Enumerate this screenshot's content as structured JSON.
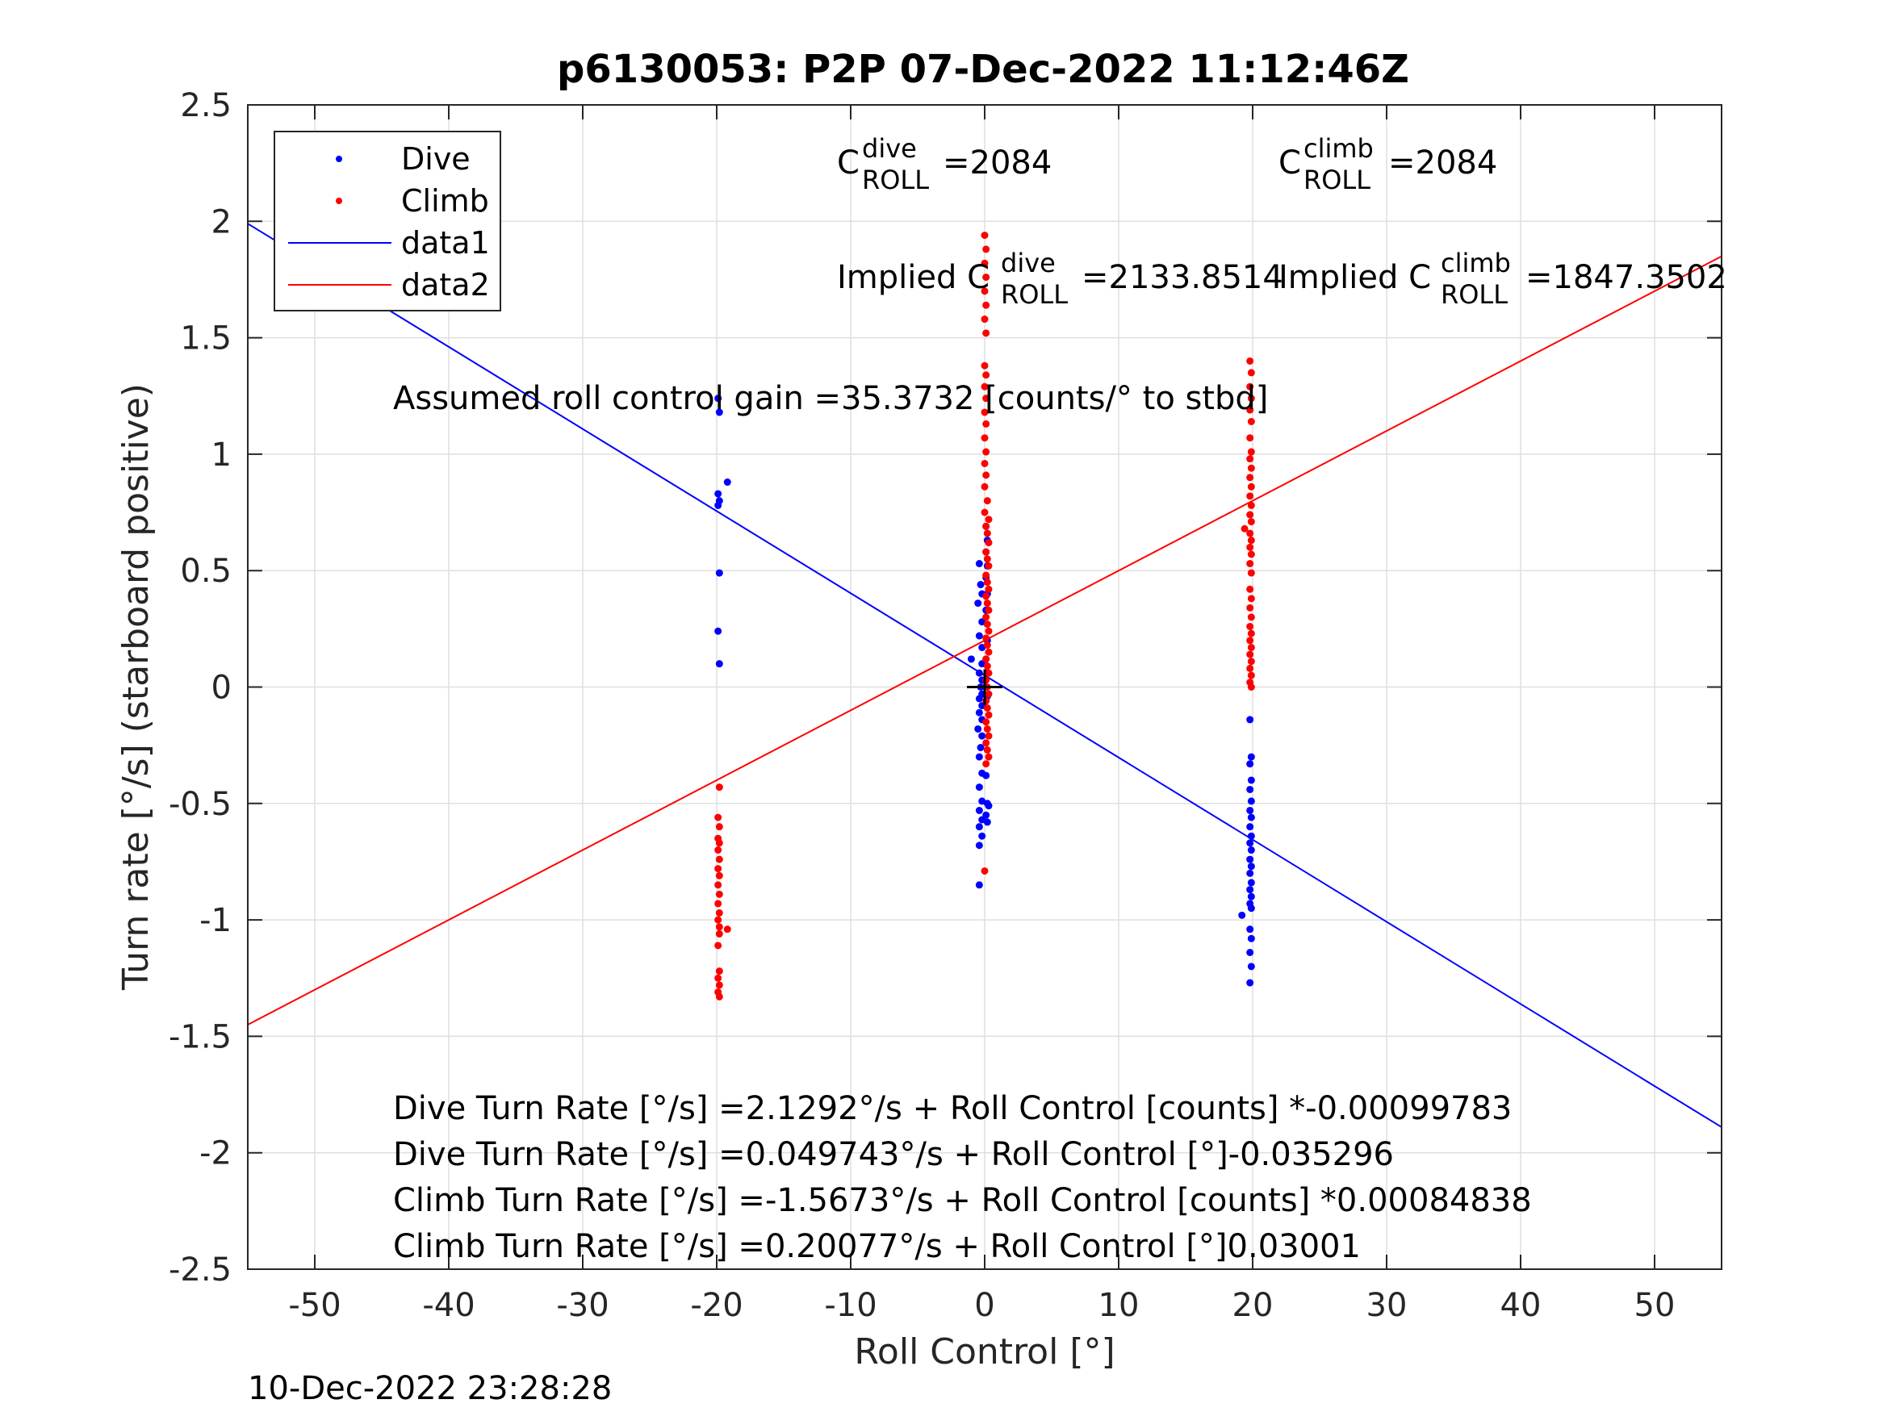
{
  "chart_data": {
    "type": "scatter",
    "title": "p6130053: P2P 07-Dec-2022 11:12:46Z",
    "xlabel": "Roll Control [°]",
    "ylabel": "Turn rate [°/s] (starboard positive)",
    "xlim": [
      -55,
      55
    ],
    "ylim": [
      -2.5,
      2.5
    ],
    "xticks": [
      -50,
      -40,
      -30,
      -20,
      -10,
      0,
      10,
      20,
      30,
      40,
      50
    ],
    "yticks": [
      -2.5,
      -2,
      -1.5,
      -1,
      -0.5,
      0,
      0.5,
      1,
      1.5,
      2,
      2.5
    ],
    "xtick_labels": [
      "-50",
      "-40",
      "-30",
      "-20",
      "-10",
      "0",
      "10",
      "20",
      "30",
      "40",
      "50"
    ],
    "ytick_labels": [
      "-2.5",
      "-2",
      "-1.5",
      "-1",
      "-0.5",
      "0",
      "0.5",
      "1",
      "1.5",
      "2",
      "2.5"
    ],
    "grid": true,
    "legend_position": "top-left",
    "legend": [
      "Dive",
      "Climb",
      "data1",
      "data2"
    ],
    "series": [
      {
        "name": "Dive",
        "kind": "points",
        "color": "#0000ff",
        "points": [
          [
            -19.9,
            1.24
          ],
          [
            -19.8,
            1.18
          ],
          [
            -19.9,
            0.83
          ],
          [
            -19.8,
            0.8
          ],
          [
            -19.9,
            0.78
          ],
          [
            -19.2,
            0.88
          ],
          [
            -19.8,
            0.49
          ],
          [
            -19.9,
            0.24
          ],
          [
            -19.8,
            0.1
          ],
          [
            -0.4,
            0.53
          ],
          [
            -0.3,
            0.44
          ],
          [
            -0.2,
            0.4
          ],
          [
            -0.5,
            0.36
          ],
          [
            -0.2,
            0.28
          ],
          [
            -0.4,
            0.22
          ],
          [
            -0.2,
            0.17
          ],
          [
            -1.0,
            0.12
          ],
          [
            -0.2,
            0.1
          ],
          [
            -0.4,
            0.06
          ],
          [
            -0.2,
            0.03
          ],
          [
            -0.3,
            0.0
          ],
          [
            -0.2,
            -0.03
          ],
          [
            -0.4,
            -0.05
          ],
          [
            -0.2,
            -0.08
          ],
          [
            -0.4,
            -0.11
          ],
          [
            -0.2,
            -0.14
          ],
          [
            -0.5,
            -0.18
          ],
          [
            -0.2,
            -0.21
          ],
          [
            -0.3,
            -0.26
          ],
          [
            -0.4,
            -0.3
          ],
          [
            -0.2,
            -0.37
          ],
          [
            -0.4,
            -0.43
          ],
          [
            -0.2,
            -0.49
          ],
          [
            -0.4,
            -0.53
          ],
          [
            -0.2,
            -0.57
          ],
          [
            -0.4,
            -0.6
          ],
          [
            -0.2,
            -0.64
          ],
          [
            -0.4,
            -0.68
          ],
          [
            -0.4,
            -0.85
          ],
          [
            0.1,
            0.69
          ],
          [
            0.2,
            0.63
          ],
          [
            0.1,
            0.58
          ],
          [
            0.2,
            0.52
          ],
          [
            0.1,
            0.47
          ],
          [
            0.2,
            0.4
          ],
          [
            0.1,
            0.33
          ],
          [
            0.2,
            0.2
          ],
          [
            0.1,
            0.12
          ],
          [
            0.2,
            0.06
          ],
          [
            0.1,
            0.0
          ],
          [
            0.2,
            -0.04
          ],
          [
            0.1,
            -0.38
          ],
          [
            0.2,
            -0.5
          ],
          [
            0.1,
            -0.55
          ],
          [
            0.2,
            -0.58
          ],
          [
            0.3,
            -0.51
          ],
          [
            19.8,
            -0.14
          ],
          [
            19.9,
            -0.3
          ],
          [
            19.8,
            -0.33
          ],
          [
            19.9,
            -0.4
          ],
          [
            19.8,
            -0.44
          ],
          [
            19.9,
            -0.49
          ],
          [
            19.8,
            -0.53
          ],
          [
            19.9,
            -0.56
          ],
          [
            19.8,
            -0.6
          ],
          [
            19.9,
            -0.64
          ],
          [
            19.8,
            -0.67
          ],
          [
            19.9,
            -0.7
          ],
          [
            19.8,
            -0.74
          ],
          [
            19.9,
            -0.77
          ],
          [
            19.8,
            -0.8
          ],
          [
            19.9,
            -0.84
          ],
          [
            19.8,
            -0.87
          ],
          [
            19.9,
            -0.9
          ],
          [
            19.8,
            -0.93
          ],
          [
            19.9,
            -0.95
          ],
          [
            19.2,
            -0.98
          ],
          [
            19.8,
            -1.04
          ],
          [
            19.9,
            -1.08
          ],
          [
            19.8,
            -1.14
          ],
          [
            19.9,
            -1.2
          ],
          [
            19.8,
            -1.27
          ]
        ]
      },
      {
        "name": "Climb",
        "kind": "points",
        "color": "#ff0000",
        "points": [
          [
            -19.8,
            -0.43
          ],
          [
            -19.9,
            -0.56
          ],
          [
            -19.8,
            -0.6
          ],
          [
            -19.9,
            -0.65
          ],
          [
            -19.8,
            -0.67
          ],
          [
            -19.9,
            -0.7
          ],
          [
            -19.8,
            -0.74
          ],
          [
            -19.9,
            -0.78
          ],
          [
            -19.8,
            -0.81
          ],
          [
            -19.9,
            -0.85
          ],
          [
            -19.8,
            -0.89
          ],
          [
            -19.9,
            -0.93
          ],
          [
            -19.8,
            -0.97
          ],
          [
            -19.9,
            -1.0
          ],
          [
            -19.8,
            -1.03
          ],
          [
            -19.2,
            -1.04
          ],
          [
            -19.8,
            -1.06
          ],
          [
            -19.9,
            -1.11
          ],
          [
            -19.8,
            -1.22
          ],
          [
            -19.9,
            -1.25
          ],
          [
            -19.8,
            -1.28
          ],
          [
            -19.9,
            -1.31
          ],
          [
            -19.8,
            -1.33
          ],
          [
            0.0,
            1.94
          ],
          [
            0.1,
            1.88
          ],
          [
            0.0,
            1.82
          ],
          [
            0.1,
            1.76
          ],
          [
            0.0,
            1.7
          ],
          [
            0.1,
            1.64
          ],
          [
            0.0,
            1.58
          ],
          [
            0.1,
            1.52
          ],
          [
            0.0,
            1.38
          ],
          [
            0.1,
            1.34
          ],
          [
            0.0,
            1.29
          ],
          [
            0.1,
            1.24
          ],
          [
            0.0,
            1.18
          ],
          [
            0.1,
            1.13
          ],
          [
            0.0,
            1.07
          ],
          [
            0.1,
            1.01
          ],
          [
            0.0,
            0.96
          ],
          [
            0.1,
            0.91
          ],
          [
            0.0,
            0.86
          ],
          [
            0.2,
            0.8
          ],
          [
            0.0,
            0.75
          ],
          [
            0.3,
            0.72
          ],
          [
            0.1,
            0.69
          ],
          [
            0.2,
            0.66
          ],
          [
            0.3,
            0.62
          ],
          [
            0.1,
            0.58
          ],
          [
            0.2,
            0.55
          ],
          [
            0.3,
            0.52
          ],
          [
            0.1,
            0.48
          ],
          [
            0.2,
            0.45
          ],
          [
            0.3,
            0.42
          ],
          [
            0.1,
            0.39
          ],
          [
            0.2,
            0.36
          ],
          [
            0.3,
            0.33
          ],
          [
            0.1,
            0.3
          ],
          [
            0.2,
            0.27
          ],
          [
            0.3,
            0.24
          ],
          [
            0.1,
            0.21
          ],
          [
            0.2,
            0.18
          ],
          [
            0.3,
            0.15
          ],
          [
            0.1,
            0.12
          ],
          [
            0.2,
            0.09
          ],
          [
            0.3,
            0.06
          ],
          [
            0.1,
            0.03
          ],
          [
            0.2,
            0.0
          ],
          [
            0.3,
            -0.03
          ],
          [
            0.1,
            -0.06
          ],
          [
            0.2,
            -0.09
          ],
          [
            0.3,
            -0.12
          ],
          [
            0.1,
            -0.15
          ],
          [
            0.2,
            -0.18
          ],
          [
            0.3,
            -0.21
          ],
          [
            0.1,
            -0.24
          ],
          [
            0.2,
            -0.27
          ],
          [
            0.3,
            -0.3
          ],
          [
            0.1,
            -0.33
          ],
          [
            0.0,
            -0.79
          ],
          [
            19.8,
            1.4
          ],
          [
            19.9,
            1.35
          ],
          [
            19.8,
            1.29
          ],
          [
            19.9,
            1.24
          ],
          [
            19.8,
            1.19
          ],
          [
            19.9,
            1.14
          ],
          [
            19.8,
            1.07
          ],
          [
            19.9,
            1.01
          ],
          [
            19.8,
            0.98
          ],
          [
            19.9,
            0.94
          ],
          [
            19.8,
            0.9
          ],
          [
            19.9,
            0.86
          ],
          [
            19.8,
            0.82
          ],
          [
            19.9,
            0.78
          ],
          [
            19.8,
            0.74
          ],
          [
            19.9,
            0.71
          ],
          [
            19.4,
            0.68
          ],
          [
            19.8,
            0.66
          ],
          [
            19.9,
            0.63
          ],
          [
            19.8,
            0.6
          ],
          [
            19.9,
            0.57
          ],
          [
            19.8,
            0.53
          ],
          [
            19.9,
            0.49
          ],
          [
            19.8,
            0.42
          ],
          [
            19.9,
            0.38
          ],
          [
            19.8,
            0.34
          ],
          [
            19.9,
            0.3
          ],
          [
            19.8,
            0.26
          ],
          [
            19.9,
            0.23
          ],
          [
            19.8,
            0.2
          ],
          [
            19.9,
            0.17
          ],
          [
            19.8,
            0.14
          ],
          [
            19.9,
            0.11
          ],
          [
            19.8,
            0.08
          ],
          [
            19.9,
            0.05
          ],
          [
            19.8,
            0.02
          ],
          [
            19.9,
            -0.0
          ]
        ]
      },
      {
        "name": "data1",
        "kind": "line",
        "color": "#0000ff",
        "points": [
          [
            -55,
            1.99
          ],
          [
            55,
            -1.89
          ]
        ]
      },
      {
        "name": "data2",
        "kind": "line",
        "color": "#ff0000",
        "points": [
          [
            -55,
            -1.45
          ],
          [
            55,
            1.85
          ]
        ]
      }
    ],
    "crosshair": {
      "x": 0,
      "y": 0,
      "color": "#000000"
    },
    "annotations": [
      {
        "id": "c-dive",
        "base": "C",
        "sup": "dive",
        "sub": "ROLL",
        "text": "=2084"
      },
      {
        "id": "c-climb",
        "base": "C",
        "sup": "climb",
        "sub": "ROLL",
        "text": "=2084"
      },
      {
        "id": "implied-dive",
        "base": "Implied C",
        "sup": "dive",
        "sub": "ROLL",
        "text": "=2133.8514"
      },
      {
        "id": "implied-climb",
        "base": "Implied C",
        "sup": "climb",
        "sub": "ROLL",
        "text": "=1847.3502"
      },
      {
        "id": "gain",
        "text": "Assumed roll control gain =35.3732 [counts/° to stbd]"
      },
      {
        "id": "eq1",
        "text": "Dive Turn Rate [°/s] =2.1292°/s + Roll Control [counts] *-0.00099783"
      },
      {
        "id": "eq2",
        "text": "Dive Turn Rate [°/s] =0.049743°/s + Roll Control [°]-0.035296"
      },
      {
        "id": "eq3",
        "text": "Climb Turn Rate [°/s] =-1.5673°/s + Roll Control [counts] *0.00084838"
      },
      {
        "id": "eq4",
        "text": "Climb Turn Rate [°/s] =0.20077°/s + Roll Control [°]0.03001"
      }
    ],
    "footer": "10-Dec-2022 23:28:28"
  }
}
